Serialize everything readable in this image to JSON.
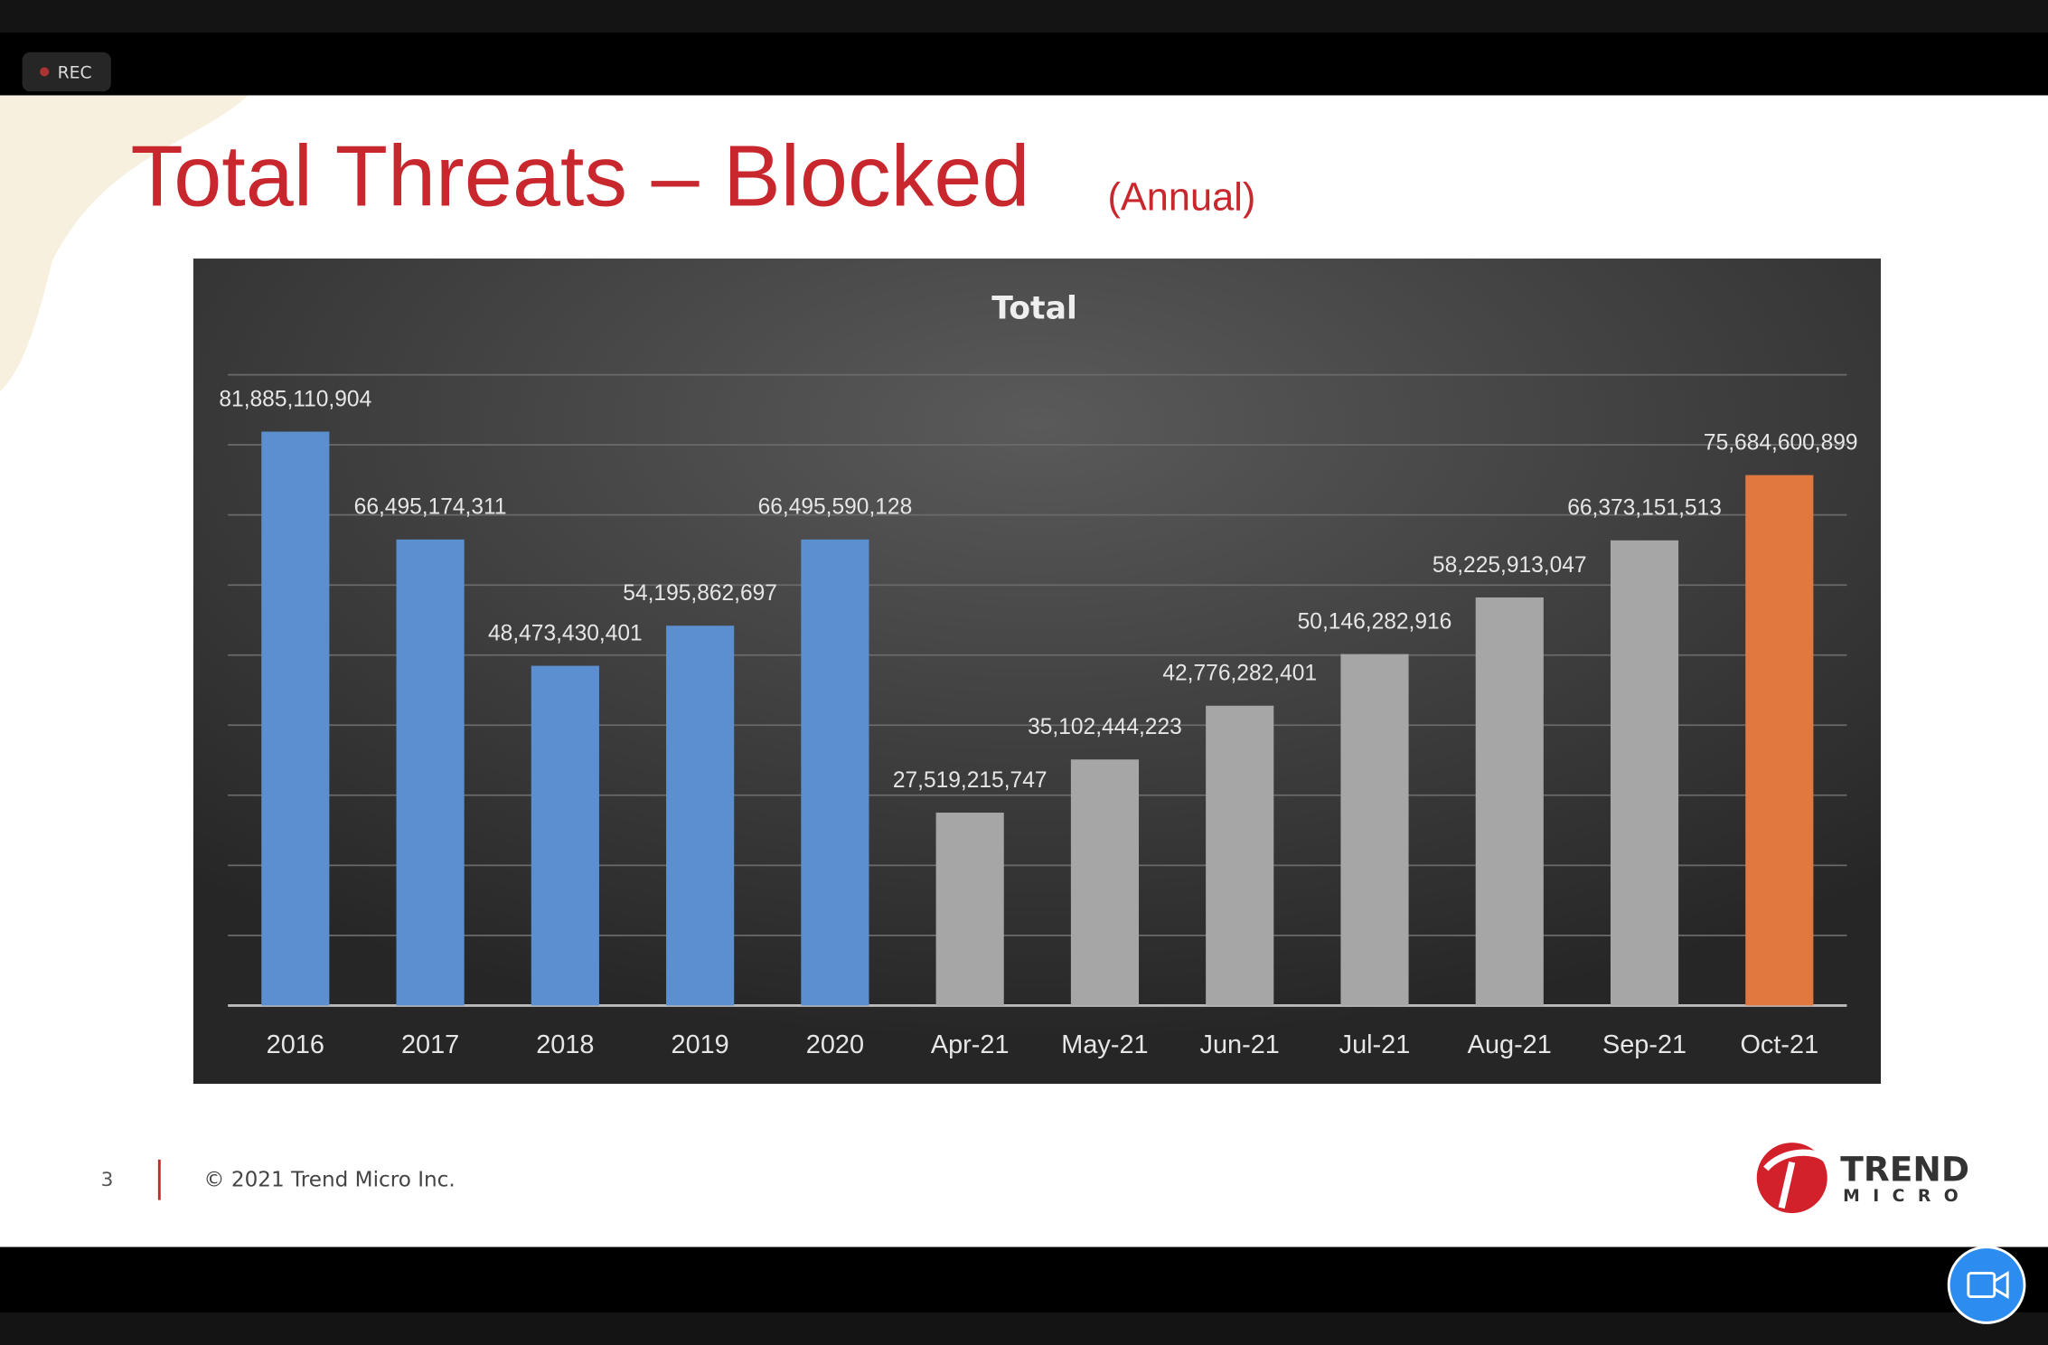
{
  "rec_label": "REC",
  "slide": {
    "title": "Total Threats – Blocked",
    "subtitle": "(Annual)",
    "page_number": "3",
    "copyright": "© 2021 Trend Micro Inc.",
    "logo_top": "TREND",
    "logo_bottom": "MICRO"
  },
  "chart_data": {
    "type": "bar",
    "title": "Total",
    "categories": [
      "2016",
      "2017",
      "2018",
      "2019",
      "2020",
      "Apr-21",
      "May-21",
      "Jun-21",
      "Jul-21",
      "Aug-21",
      "Sep-21",
      "Oct-21"
    ],
    "values": [
      81885110904,
      66495174311,
      48473430401,
      54195862697,
      66495590128,
      27519215747,
      35102444223,
      42776282401,
      50146282916,
      58225913047,
      66373151513,
      75684600899
    ],
    "value_labels": [
      "81,885,110,904",
      "66,495,174,311",
      "48,473,430,401",
      "54,195,862,697",
      "66,495,590,128",
      "27,519,215,747",
      "35,102,444,223",
      "42,776,282,401",
      "50,146,282,916",
      "58,225,913,047",
      "66,373,151,513",
      "75,684,600,899"
    ],
    "colors": [
      "#5b8fd0",
      "#5b8fd0",
      "#5b8fd0",
      "#5b8fd0",
      "#5b8fd0",
      "#a6a6a6",
      "#a6a6a6",
      "#a6a6a6",
      "#a6a6a6",
      "#a6a6a6",
      "#a6a6a6",
      "#e0783f"
    ],
    "ylim": [
      0,
      90000000000
    ],
    "yticks": [
      0,
      10000000000,
      20000000000,
      30000000000,
      40000000000,
      50000000000,
      60000000000,
      70000000000,
      80000000000,
      90000000000
    ],
    "grid": true
  }
}
